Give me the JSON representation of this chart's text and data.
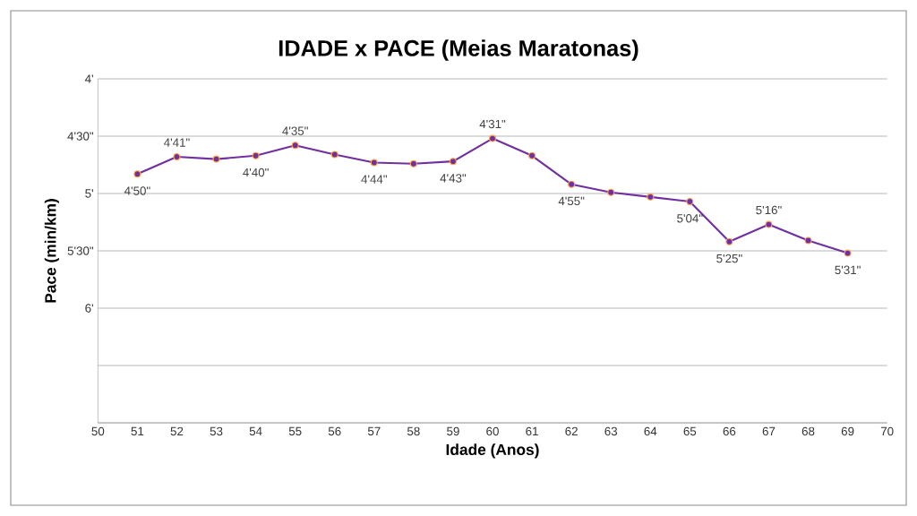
{
  "chart_data": {
    "type": "line",
    "title": "IDADE x PACE (Meias Maratonas)",
    "xlabel": "Idade (Anos)",
    "ylabel": "Pace   (min/km)",
    "x": [
      51,
      52,
      53,
      54,
      55,
      56,
      57,
      58,
      59,
      60,
      61,
      62,
      63,
      64,
      65,
      66,
      67,
      68,
      69
    ],
    "series": [
      {
        "color": "#7030a0",
        "values": [
          4.83,
          4.68,
          4.7,
          4.67,
          4.58,
          4.66,
          4.73,
          4.74,
          4.72,
          4.52,
          4.67,
          4.92,
          4.99,
          5.03,
          5.07,
          5.42,
          5.27,
          5.41,
          5.52
        ]
      }
    ],
    "annotations": [
      {
        "text": "4'50\"",
        "x": 51,
        "y": 4.83
      },
      {
        "text": "4'41\"",
        "x": 52,
        "y": 4.68
      },
      {
        "text": "4'40\"",
        "x": 54,
        "y": 4.67
      },
      {
        "text": "4'35\"",
        "x": 55,
        "y": 4.58
      },
      {
        "text": "4'44\"",
        "x": 57,
        "y": 4.73
      },
      {
        "text": "4'43\"",
        "x": 59,
        "y": 4.72
      },
      {
        "text": "4'31\"",
        "x": 60,
        "y": 4.52
      },
      {
        "text": "4'55\"",
        "x": 62,
        "y": 4.92
      },
      {
        "text": "5'04\"",
        "x": 65,
        "y": 5.07
      },
      {
        "text": "5'25\"",
        "x": 66,
        "y": 5.42
      },
      {
        "text": "5'16\"",
        "x": 67,
        "y": 5.27
      },
      {
        "text": "5'31\"",
        "x": 69,
        "y": 5.52
      }
    ],
    "xlim": [
      50,
      70
    ],
    "xticks": [
      50,
      51,
      52,
      53,
      54,
      55,
      56,
      57,
      58,
      59,
      60,
      61,
      62,
      63,
      64,
      65,
      66,
      67,
      68,
      69,
      70
    ],
    "ylim": [
      7,
      4
    ],
    "yticks": [
      {
        "value": 4,
        "label": "4'"
      },
      {
        "value": 4.5,
        "label": "4'30\""
      },
      {
        "value": 5,
        "label": "5'"
      },
      {
        "value": 5.5,
        "label": "5'30\""
      },
      {
        "value": 6,
        "label": "6'"
      },
      {
        "value": 6.5,
        "label": null
      },
      {
        "value": 7,
        "label": null
      }
    ],
    "grid": "y",
    "marker": "circle",
    "line_style": "solid"
  }
}
